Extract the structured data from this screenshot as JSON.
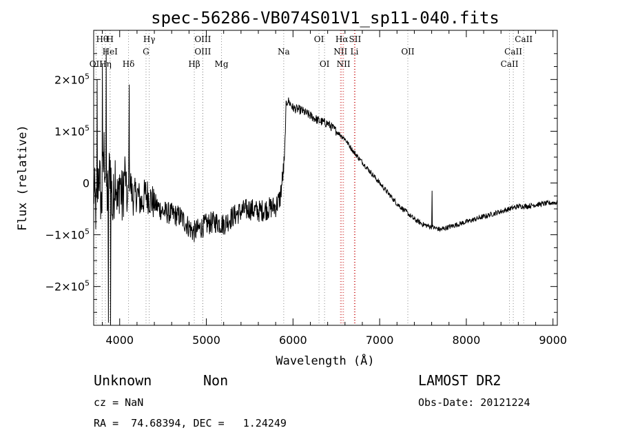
{
  "chart_data": {
    "type": "line",
    "title": "spec-56286-VB074S01V1_sp11-040.fits",
    "xlabel": "Wavelength (Å)",
    "ylabel": "Flux (relative)",
    "xlim": [
      3700,
      9050
    ],
    "ylim": [
      -275000,
      295000
    ],
    "x_ticks": [
      {
        "value": 4000,
        "label": "4000"
      },
      {
        "value": 5000,
        "label": "5000"
      },
      {
        "value": 6000,
        "label": "6000"
      },
      {
        "value": 7000,
        "label": "7000"
      },
      {
        "value": 8000,
        "label": "8000"
      },
      {
        "value": 9000,
        "label": "9000"
      }
    ],
    "y_ticks": [
      {
        "value": 200000,
        "mantissa": "2×10",
        "exp": "5"
      },
      {
        "value": 100000,
        "mantissa": "1×10",
        "exp": "5"
      },
      {
        "value": 0,
        "mantissa": "0",
        "exp": ""
      },
      {
        "value": -100000,
        "mantissa": "−1×10",
        "exp": "5"
      },
      {
        "value": -200000,
        "mantissa": "−2×10",
        "exp": "5"
      }
    ],
    "grid": false,
    "series_color": "#000000",
    "spectral_lines": [
      {
        "label": "Hθ",
        "x": 3798,
        "row": 0,
        "color": "#888888"
      },
      {
        "label": "H",
        "x": 3889,
        "row": 0,
        "color": "#888888"
      },
      {
        "label": "Hγ",
        "x": 4341,
        "row": 0,
        "color": "#888888"
      },
      {
        "label": "OIII",
        "x": 4959,
        "row": 0,
        "color": "#888888"
      },
      {
        "label": "OI",
        "x": 6300,
        "row": 0,
        "color": "#888888"
      },
      {
        "label": "Hα",
        "x": 6563,
        "row": 0,
        "color": "#cc2222"
      },
      {
        "label": "SII",
        "x": 6716,
        "row": 0,
        "color": "#cc2222"
      },
      {
        "label": "CaII",
        "x": 8662,
        "row": 0,
        "color": "#888888"
      },
      {
        "label": "HeI",
        "x": 3889,
        "row": 1,
        "color": "#888888"
      },
      {
        "label": "G",
        "x": 4304,
        "row": 1,
        "color": "#888888"
      },
      {
        "label": "OIII",
        "x": 4959,
        "row": 1,
        "color": "#888888"
      },
      {
        "label": "Na",
        "x": 5893,
        "row": 1,
        "color": "#888888"
      },
      {
        "label": "NII",
        "x": 6548,
        "row": 1,
        "color": "#cc2222"
      },
      {
        "label": "Li",
        "x": 6708,
        "row": 1,
        "color": "#cc2222"
      },
      {
        "label": "OII",
        "x": 7325,
        "row": 1,
        "color": "#888888"
      },
      {
        "label": "CaII",
        "x": 8542,
        "row": 1,
        "color": "#888888"
      },
      {
        "label": "OII",
        "x": 3727,
        "row": 2,
        "color": "#888888"
      },
      {
        "label": "Hη",
        "x": 3835,
        "row": 2,
        "color": "#888888"
      },
      {
        "label": "Hδ",
        "x": 4102,
        "row": 2,
        "color": "#888888"
      },
      {
        "label": "Hβ",
        "x": 4861,
        "row": 2,
        "color": "#888888"
      },
      {
        "label": "Mg",
        "x": 5175,
        "row": 2,
        "color": "#888888"
      },
      {
        "label": "OI",
        "x": 6364,
        "row": 2,
        "color": "#888888"
      },
      {
        "label": "NII",
        "x": 6583,
        "row": 2,
        "color": "#cc2222"
      },
      {
        "label": "CaII",
        "x": 8498,
        "row": 2,
        "color": "#888888"
      }
    ],
    "anchors": [
      [
        3700,
        -10000
      ],
      [
        3730,
        -60000
      ],
      [
        3760,
        30000
      ],
      [
        3790,
        -50000
      ],
      [
        3820,
        60000
      ],
      [
        3860,
        -30000
      ],
      [
        3890,
        40000
      ],
      [
        3920,
        -60000
      ],
      [
        3950,
        30000
      ],
      [
        3980,
        -50000
      ],
      [
        4000,
        10000
      ],
      [
        4030,
        -40000
      ],
      [
        4060,
        30000
      ],
      [
        4090,
        -50000
      ],
      [
        4110,
        20000
      ],
      [
        4150,
        -30000
      ],
      [
        4200,
        -20000
      ],
      [
        4250,
        -40000
      ],
      [
        4300,
        -20000
      ],
      [
        4350,
        -30000
      ],
      [
        4400,
        -40000
      ],
      [
        4500,
        -55000
      ],
      [
        4600,
        -60000
      ],
      [
        4700,
        -65000
      ],
      [
        4800,
        -85000
      ],
      [
        4850,
        -95000
      ],
      [
        4900,
        -90000
      ],
      [
        5000,
        -80000
      ],
      [
        5100,
        -75000
      ],
      [
        5200,
        -80000
      ],
      [
        5300,
        -65000
      ],
      [
        5400,
        -55000
      ],
      [
        5500,
        -50000
      ],
      [
        5600,
        -55000
      ],
      [
        5700,
        -50000
      ],
      [
        5800,
        -45000
      ],
      [
        5850,
        -30000
      ],
      [
        5880,
        10000
      ],
      [
        5900,
        40000
      ],
      [
        5920,
        150000
      ],
      [
        5940,
        160000
      ],
      [
        6000,
        145000
      ],
      [
        6100,
        140000
      ],
      [
        6200,
        130000
      ],
      [
        6300,
        120000
      ],
      [
        6400,
        115000
      ],
      [
        6500,
        100000
      ],
      [
        6600,
        85000
      ],
      [
        6700,
        60000
      ],
      [
        6800,
        40000
      ],
      [
        6900,
        20000
      ],
      [
        7000,
        0
      ],
      [
        7100,
        -20000
      ],
      [
        7200,
        -40000
      ],
      [
        7300,
        -55000
      ],
      [
        7400,
        -70000
      ],
      [
        7500,
        -80000
      ],
      [
        7600,
        -85000
      ],
      [
        7700,
        -90000
      ],
      [
        7800,
        -85000
      ],
      [
        7900,
        -80000
      ],
      [
        8000,
        -75000
      ],
      [
        8100,
        -70000
      ],
      [
        8200,
        -65000
      ],
      [
        8300,
        -60000
      ],
      [
        8400,
        -55000
      ],
      [
        8500,
        -50000
      ],
      [
        8600,
        -45000
      ],
      [
        8700,
        -45000
      ],
      [
        8800,
        -42000
      ],
      [
        8900,
        -40000
      ],
      [
        9000,
        -38000
      ],
      [
        9050,
        -38000
      ]
    ],
    "features": [
      {
        "x": 3740,
        "y": 200000
      },
      {
        "x": 3800,
        "y": 230000
      },
      {
        "x": 3845,
        "y": 260000
      },
      {
        "x": 3870,
        "y": -270000
      },
      {
        "x": 3895,
        "y": -275000
      },
      {
        "x": 4110,
        "y": 190000
      },
      {
        "x": 7605,
        "y": -15000
      }
    ],
    "noise": [
      {
        "x_min": 3700,
        "x_max": 4050,
        "amp": 60000
      },
      {
        "x_min": 4050,
        "x_max": 4400,
        "amp": 35000
      },
      {
        "x_min": 4400,
        "x_max": 5900,
        "amp": 22000
      },
      {
        "x_min": 5900,
        "x_max": 6500,
        "amp": 9000
      },
      {
        "x_min": 6500,
        "x_max": 9050,
        "amp": 5000
      }
    ]
  },
  "info": {
    "object_class": "Unknown",
    "object_subclass": "Non",
    "survey": "LAMOST DR2",
    "redshift": "cz = NaN",
    "obs_date": "Obs-Date: 20121224",
    "coords": "RA =  74.68394, DEC =   1.24249"
  }
}
